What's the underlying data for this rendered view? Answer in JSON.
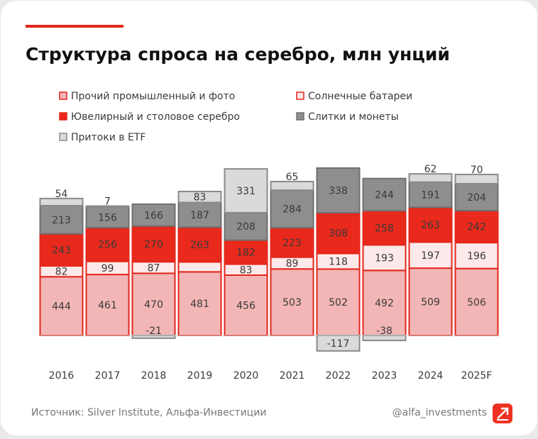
{
  "chart_data": {
    "type": "bar",
    "stacked": true,
    "title": "Структура спроса на серебро, млн унций",
    "categories": [
      "2016",
      "2017",
      "2018",
      "2019",
      "2020",
      "2021",
      "2022",
      "2023",
      "2024",
      "2025F"
    ],
    "series": [
      {
        "name": "Прочий промышленный и фото",
        "color": "#f3b6b6",
        "edgecolor": "#e3261b",
        "values": [
          444,
          461,
          470,
          481,
          456,
          503,
          502,
          492,
          509,
          506
        ]
      },
      {
        "name": "Солнечные батареи",
        "color": "#fde9e9",
        "edgecolor": "#e3261b",
        "values": [
          82,
          99,
          87,
          75,
          83,
          89,
          118,
          193,
          197,
          196
        ]
      },
      {
        "name": "Ювелирный и столовое серебро",
        "color": "#e8291c",
        "edgecolor": "#e3261b",
        "values": [
          243,
          256,
          270,
          263,
          182,
          223,
          308,
          258,
          263,
          242
        ]
      },
      {
        "name": "Слитки и монеты",
        "color": "#8e8e8e",
        "edgecolor": "#6f6f6f",
        "values": [
          213,
          156,
          166,
          187,
          208,
          284,
          338,
          244,
          191,
          204
        ]
      },
      {
        "name": "Притоки в ETF",
        "color": "#dadada",
        "edgecolor": "#8a8a8a",
        "values": [
          54,
          7,
          -21,
          83,
          331,
          65,
          -117,
          -38,
          62,
          70
        ]
      }
    ],
    "source": "Источник: Silver Institute, Альфа-Инвестиции",
    "credit": "@alfa_investments"
  }
}
